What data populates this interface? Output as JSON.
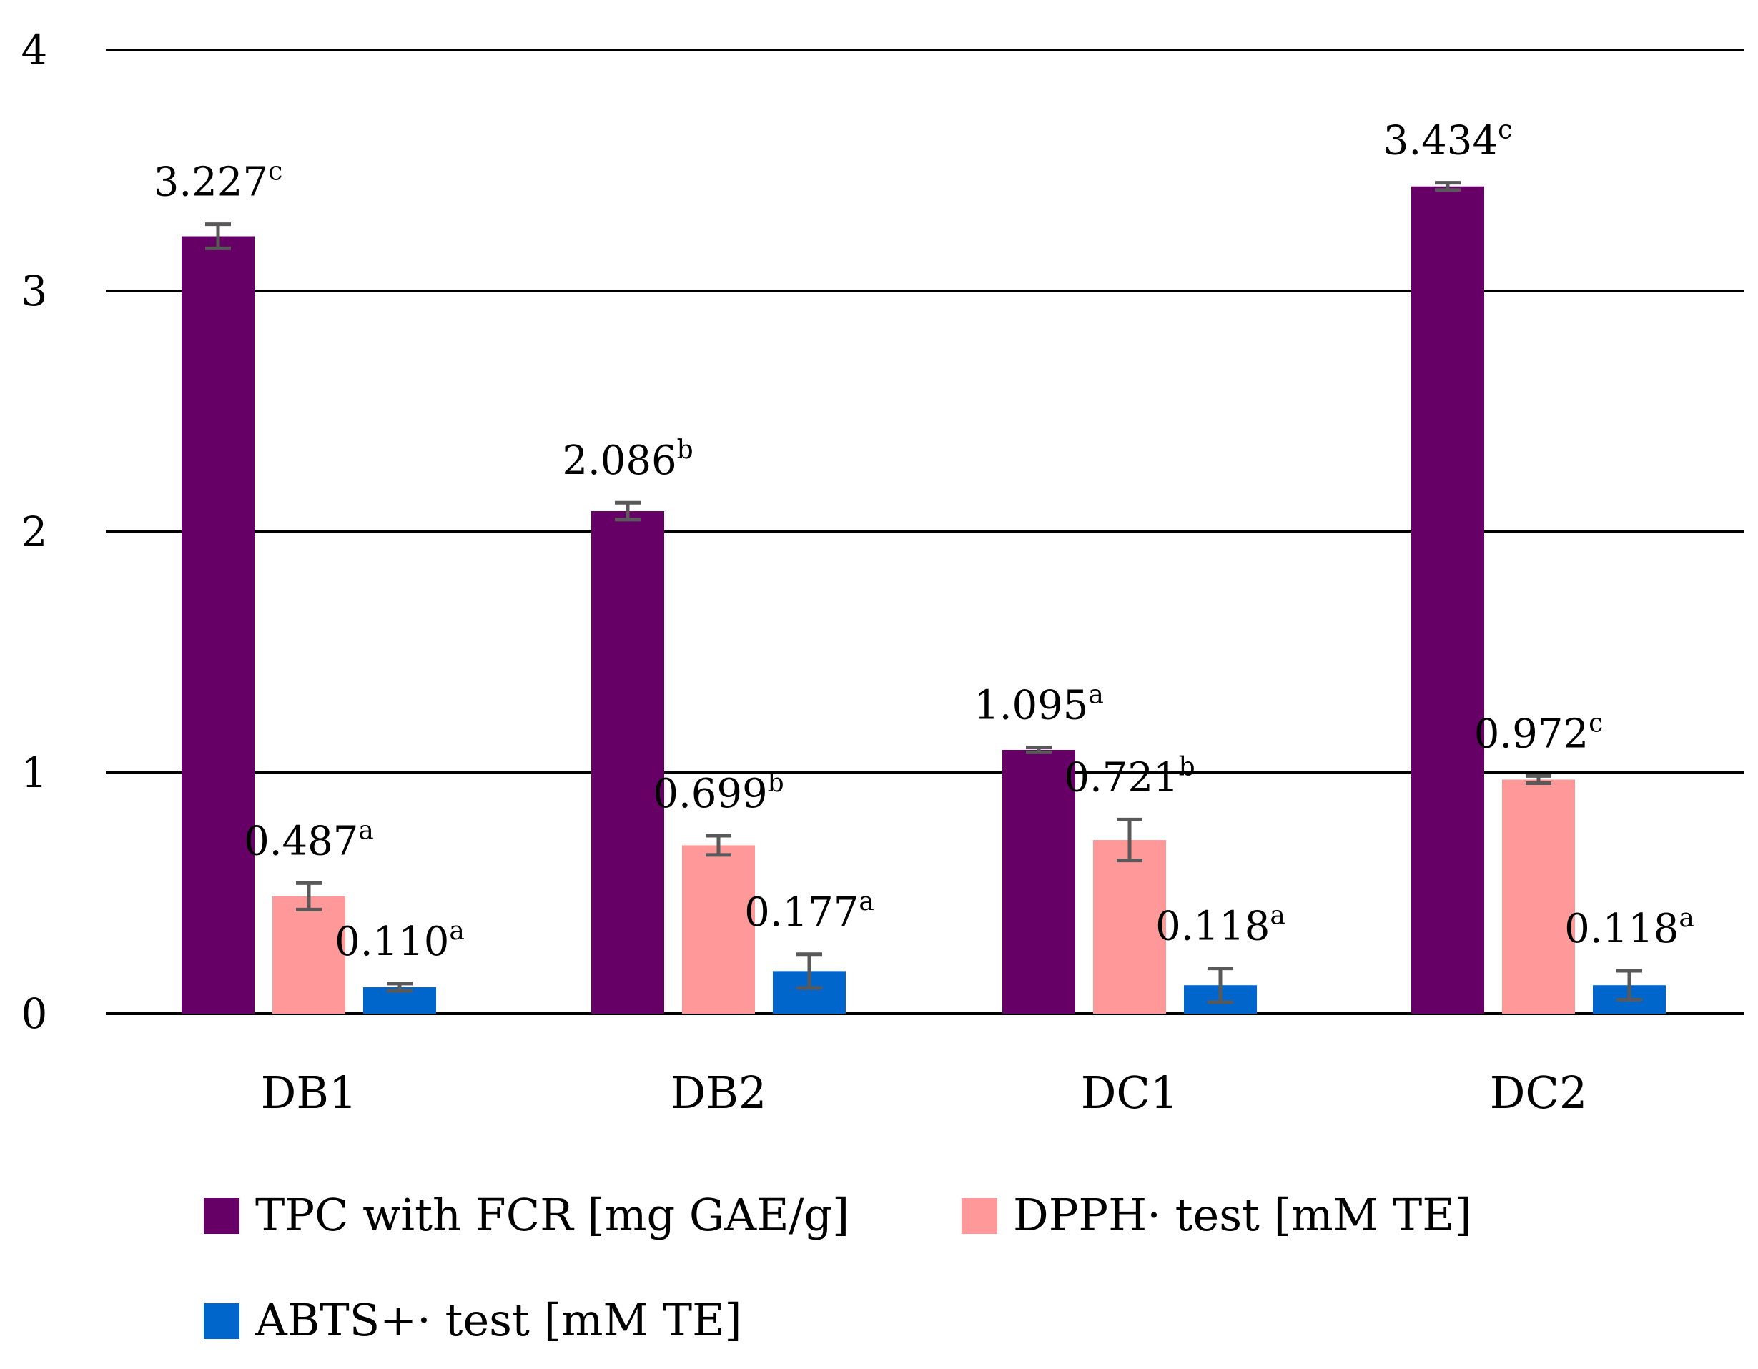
{
  "chart_data": {
    "type": "bar",
    "title": "",
    "xlabel": "",
    "ylabel": "",
    "ylim": [
      0,
      4
    ],
    "yticks": [
      "0",
      "1",
      "2",
      "3",
      "4"
    ],
    "grid": true,
    "legend_position": "bottom",
    "categories": [
      "DB1",
      "DB2",
      "DC1",
      "DC2"
    ],
    "series": [
      {
        "name": "TPC with FCR [mg GAE/g]",
        "color": "#660066",
        "values": [
          3.227,
          2.086,
          1.095,
          3.434
        ],
        "errors": [
          0.05,
          0.035,
          0.01,
          0.015
        ],
        "labels": [
          "3.227",
          "2.086",
          "1.095",
          "3.434"
        ],
        "superscripts": [
          "c",
          "b",
          "a",
          "c"
        ]
      },
      {
        "name": "DPPH· test [mM TE]",
        "color": "#ff9999",
        "values": [
          0.487,
          0.699,
          0.721,
          0.972
        ],
        "errors": [
          0.055,
          0.04,
          0.085,
          0.015
        ],
        "labels": [
          "0.487",
          "0.699",
          "0.721",
          "0.972"
        ],
        "superscripts": [
          "a",
          "b",
          "b",
          "c"
        ]
      },
      {
        "name": "ABTS+· test [mM TE]",
        "color": "#0066cc",
        "values": [
          0.11,
          0.177,
          0.118,
          0.118
        ],
        "errors": [
          0.015,
          0.07,
          0.07,
          0.06
        ],
        "labels": [
          "0.110",
          "0.177",
          "0.118",
          "0.118"
        ],
        "superscripts": [
          "a",
          "a",
          "a",
          "a"
        ]
      }
    ]
  }
}
